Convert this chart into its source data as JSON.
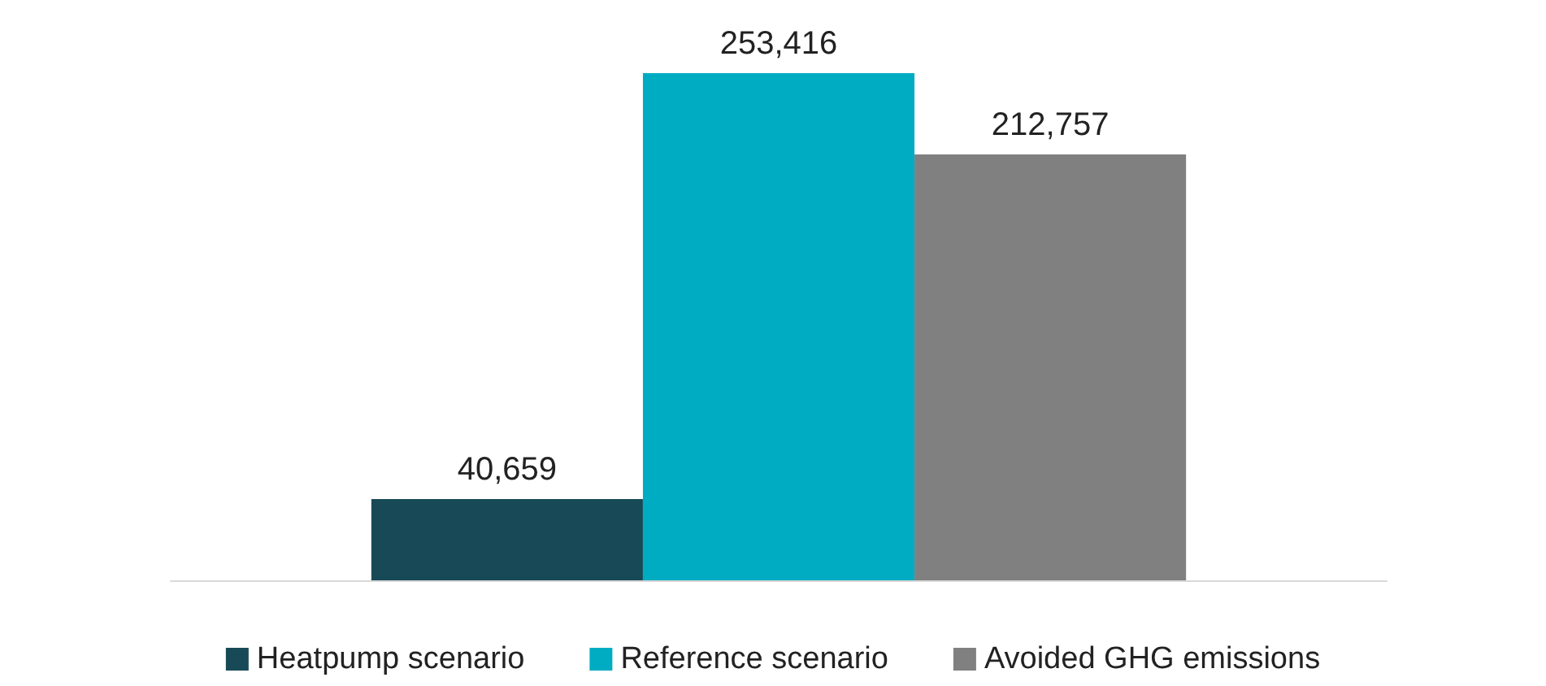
{
  "chart_data": {
    "type": "bar",
    "categories": [
      null
    ],
    "series": [
      {
        "name": "Heatpump scenario",
        "color": "#174a56",
        "values": [
          40659
        ],
        "value_labels": [
          "40,659"
        ]
      },
      {
        "name": "Reference scenario",
        "color": "#00acc1",
        "values": [
          253416
        ],
        "value_labels": [
          "253,416"
        ]
      },
      {
        "name": "Avoided GHG emissions",
        "color": "#808080",
        "values": [
          212757
        ],
        "value_labels": [
          "212,757"
        ]
      }
    ],
    "legend": "bottom"
  }
}
